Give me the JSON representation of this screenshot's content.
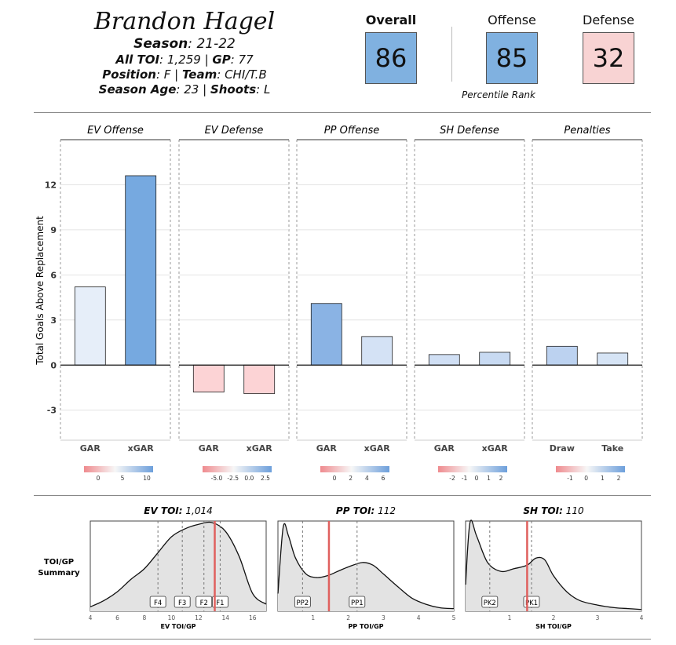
{
  "player": {
    "name": "Brandon Hagel",
    "season_label": "Season",
    "season": "21-22",
    "toi_label": "All TOI",
    "toi": "1,259",
    "gp_label": "GP",
    "gp": "77",
    "position_label": "Position",
    "position": "F",
    "team_label": "Team",
    "team": "CHI/T.B",
    "age_label": "Season Age",
    "age": "23",
    "shoots_label": "Shoots",
    "shoots": "L"
  },
  "ratings": {
    "overall_label": "Overall",
    "overall": "86",
    "offense_label": "Offense",
    "offense": "85",
    "defense_label": "Defense",
    "defense": "32",
    "caption": "Percentile Rank",
    "colors": {
      "overall": "#80b1e0",
      "offense": "#80b1e0",
      "defense": "#f8d3d3"
    }
  },
  "chart_data": [
    {
      "type": "bar",
      "ylabel": "Total Goals Above Replacement",
      "ylim": [
        -5,
        15
      ],
      "yticks": [
        12,
        9,
        6,
        3,
        0,
        -3
      ],
      "panels": [
        {
          "title": "EV Offense",
          "categories": [
            "GAR",
            "xGAR"
          ],
          "values": [
            5.2,
            12.6
          ],
          "colors": [
            "#e6eef9",
            "#76a9e0"
          ],
          "legend_ticks": [
            "0",
            "5",
            "10"
          ]
        },
        {
          "title": "EV Defense",
          "categories": [
            "GAR",
            "xGAR"
          ],
          "values": [
            -1.8,
            -1.9
          ],
          "colors": [
            "#fcd3d5",
            "#fcd3d5"
          ],
          "legend_ticks": [
            "-5.0",
            "-2.5",
            "0.0",
            "2.5"
          ]
        },
        {
          "title": "PP Offense",
          "categories": [
            "GAR",
            "xGAR"
          ],
          "values": [
            4.1,
            1.9
          ],
          "colors": [
            "#8ab3e4",
            "#d4e2f5"
          ],
          "legend_ticks": [
            "0",
            "2",
            "4",
            "6"
          ]
        },
        {
          "title": "SH Defense",
          "categories": [
            "GAR",
            "xGAR"
          ],
          "values": [
            0.7,
            0.85
          ],
          "colors": [
            "#d0dff4",
            "#c8daf2"
          ],
          "legend_ticks": [
            "-2",
            "-1",
            "0",
            "1",
            "2"
          ]
        },
        {
          "title": "Penalties",
          "categories": [
            "Draw",
            "Take"
          ],
          "values": [
            1.25,
            0.8
          ],
          "colors": [
            "#bcd2f0",
            "#d6e4f5"
          ],
          "legend_ticks": [
            "-1",
            "0",
            "1",
            "2"
          ]
        }
      ]
    },
    {
      "type": "area",
      "side_label_1": "TOI/GP",
      "side_label_2": "Summary",
      "panels": [
        {
          "title_label": "EV TOI",
          "title_value": "1,014",
          "xlabel": "EV TOI/GP",
          "xlim": [
            4,
            17
          ],
          "xticks": [
            4,
            6,
            8,
            10,
            12,
            14,
            16
          ],
          "marker": 13.2,
          "density_x": [
            4,
            5,
            6,
            7,
            8,
            9,
            10,
            11,
            12,
            13,
            14,
            15,
            16,
            17
          ],
          "density_y": [
            0.05,
            0.12,
            0.22,
            0.36,
            0.48,
            0.66,
            0.84,
            0.93,
            0.98,
            1.0,
            0.9,
            0.62,
            0.2,
            0.08
          ],
          "quantile_values": [
            9.0,
            10.8,
            12.4,
            13.6
          ],
          "quantile_labels": [
            "F4",
            "F3",
            "F2",
            "F1"
          ]
        },
        {
          "title_label": "PP TOI",
          "title_value": "112",
          "xlabel": "PP TOI/GP",
          "xlim": [
            0,
            5
          ],
          "xticks": [
            1,
            2,
            3,
            4,
            5
          ],
          "marker": 1.45,
          "density_x": [
            0,
            0.15,
            0.3,
            0.5,
            0.8,
            1.1,
            1.4,
            1.7,
            2.0,
            2.4,
            2.7,
            3.0,
            3.4,
            3.8,
            4.2,
            4.6,
            5.0
          ],
          "density_y": [
            0.2,
            0.95,
            0.85,
            0.6,
            0.42,
            0.38,
            0.4,
            0.45,
            0.5,
            0.55,
            0.52,
            0.42,
            0.28,
            0.15,
            0.08,
            0.04,
            0.03
          ],
          "quantile_values": [
            0.7,
            2.25
          ],
          "quantile_labels": [
            "PP2",
            "PP1"
          ]
        },
        {
          "title_label": "SH TOI",
          "title_value": "110",
          "xlabel": "SH TOI/GP",
          "xlim": [
            0,
            4
          ],
          "xticks": [
            1,
            2,
            3,
            4
          ],
          "marker": 1.4,
          "density_x": [
            0,
            0.1,
            0.25,
            0.5,
            0.8,
            1.1,
            1.4,
            1.6,
            1.8,
            2.0,
            2.3,
            2.6,
            3.0,
            3.4,
            3.7,
            4.0
          ],
          "density_y": [
            0.3,
            1.0,
            0.85,
            0.55,
            0.45,
            0.48,
            0.52,
            0.6,
            0.58,
            0.4,
            0.22,
            0.12,
            0.07,
            0.04,
            0.03,
            0.02
          ],
          "quantile_values": [
            0.55,
            1.5
          ],
          "quantile_labels": [
            "PK2",
            "PK1"
          ]
        }
      ]
    }
  ]
}
